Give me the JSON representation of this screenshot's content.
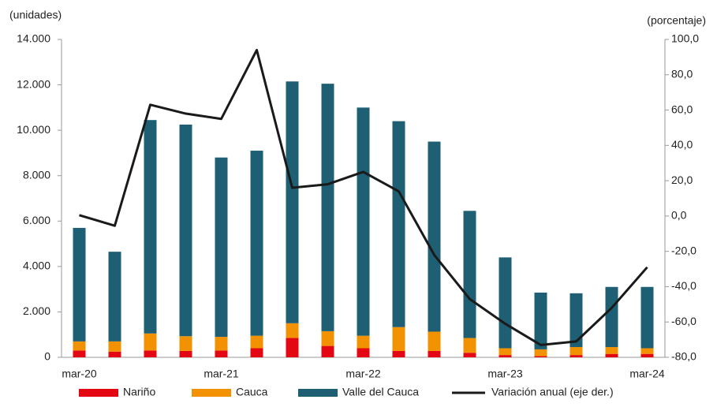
{
  "chart_data": {
    "type": "bar",
    "y_label": "(unidades)",
    "y2_label": "(porcentaje)",
    "categories": [
      "mar-20",
      null,
      null,
      null,
      "mar-21",
      null,
      null,
      null,
      "mar-22",
      null,
      null,
      null,
      "mar-23",
      null,
      null,
      null,
      "mar-24"
    ],
    "stacked": true,
    "series": [
      {
        "name": "Nariño",
        "type": "bar",
        "color": "#e30613",
        "values": [
          300,
          250,
          300,
          280,
          300,
          400,
          850,
          500,
          400,
          280,
          280,
          200,
          100,
          50,
          100,
          150,
          150
        ]
      },
      {
        "name": "Cauca",
        "type": "bar",
        "color": "#f39200",
        "values": [
          400,
          450,
          750,
          650,
          600,
          550,
          650,
          650,
          550,
          1050,
          850,
          650,
          300,
          300,
          350,
          300,
          250
        ]
      },
      {
        "name": "Valle del Cauca",
        "type": "bar",
        "color": "#1f5f73",
        "values": [
          5000,
          3950,
          9400,
          9320,
          7900,
          8150,
          10650,
          10900,
          10050,
          9070,
          8370,
          5600,
          4000,
          2500,
          2370,
          2650,
          2700
        ]
      },
      {
        "name": "Variación anual (eje der.)",
        "type": "line",
        "axis": "y2",
        "color": "#1a1a1a",
        "values": [
          0.5,
          -5.5,
          63,
          58,
          55,
          94,
          16,
          18,
          25,
          14,
          -22,
          -47,
          -61,
          -73,
          -71,
          -52,
          -29
        ]
      }
    ],
    "ylim": [
      0,
      14000
    ],
    "yticks": [
      {
        "value": 0,
        "label": "0"
      },
      {
        "value": 2000,
        "label": "2.000"
      },
      {
        "value": 4000,
        "label": "4.000"
      },
      {
        "value": 6000,
        "label": "6.000"
      },
      {
        "value": 8000,
        "label": "8.000"
      },
      {
        "value": 10000,
        "label": "10.000"
      },
      {
        "value": 12000,
        "label": "12.000"
      },
      {
        "value": 14000,
        "label": "14.000"
      }
    ],
    "y2lim": [
      -80,
      100
    ],
    "y2ticks": [
      {
        "value": -80,
        "label": "-80,0"
      },
      {
        "value": -60,
        "label": "-60,0"
      },
      {
        "value": -40,
        "label": "-40,0"
      },
      {
        "value": -20,
        "label": "-20,0"
      },
      {
        "value": 0,
        "label": "0,0"
      },
      {
        "value": 20,
        "label": "20,0"
      },
      {
        "value": 40,
        "label": "40,0"
      },
      {
        "value": 60,
        "label": "60,0"
      },
      {
        "value": 80,
        "label": "80,0"
      },
      {
        "value": 100,
        "label": "100,0"
      }
    ],
    "legend": "bottom"
  }
}
